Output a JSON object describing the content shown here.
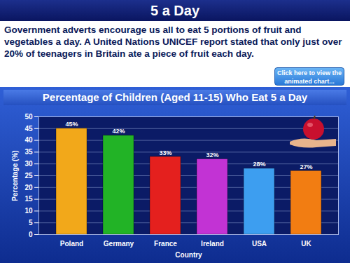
{
  "page": {
    "title": "5 a Day",
    "text": "Government adverts encourage us all to eat 5 portions of fruit and vegetables a day. A United Nations UNICEF report stated that only just over 20% of teenagers in Britain ate a piece of fruit each day.",
    "button": "Click here to view the animated chart..."
  },
  "chart_data": {
    "type": "bar",
    "title": "Percentage of Children (Aged 11-15) Who Eat 5 a Day",
    "x_label": "Country",
    "y_label": "Percentage (%)",
    "categories": [
      "Poland",
      "Germany",
      "France",
      "Ireland",
      "USA",
      "UK"
    ],
    "values": [
      45,
      42,
      33,
      32,
      28,
      27
    ],
    "value_labels": [
      "45%",
      "42%",
      "33%",
      "32%",
      "28%",
      "27%"
    ],
    "colors": [
      "#f2a81a",
      "#22b326",
      "#e4201e",
      "#c233d4",
      "#3d9ef0",
      "#f27d12"
    ],
    "ylim": [
      0,
      50
    ],
    "yticks": [
      0,
      5,
      10,
      15,
      20,
      25,
      30,
      35,
      40,
      45,
      50
    ],
    "grid": true,
    "data_labels": true
  }
}
